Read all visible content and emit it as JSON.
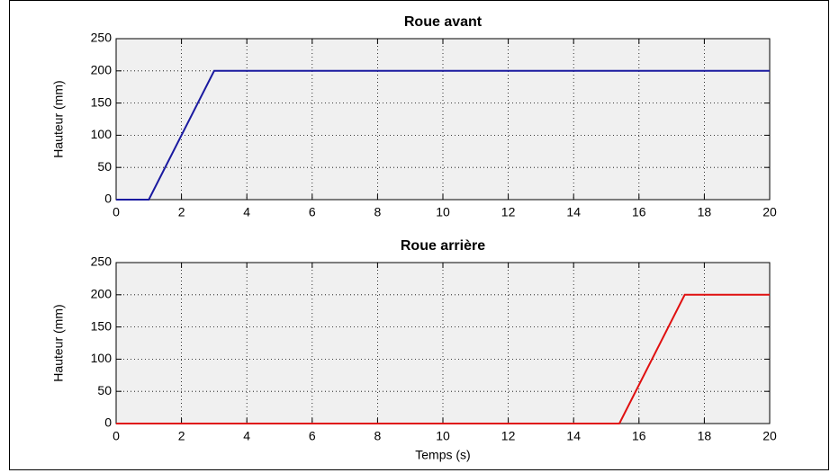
{
  "chart_data": [
    {
      "type": "line",
      "title": "Roue avant",
      "y_label": "Hauteur (mm)",
      "x": [
        0,
        1,
        3,
        20
      ],
      "values": [
        0,
        0,
        200,
        200
      ],
      "color": "#1a1aa0",
      "xlim": [
        0,
        20
      ],
      "xticks": [
        0,
        2,
        4,
        6,
        8,
        10,
        12,
        14,
        16,
        18,
        20
      ],
      "ylim": [
        0,
        250
      ],
      "yticks": [
        0,
        50,
        100,
        150,
        200,
        250
      ],
      "grid": true
    },
    {
      "type": "line",
      "title": "Roue arrière",
      "y_label": "Hauteur (mm)",
      "x_label": "Temps (s)",
      "x": [
        0,
        15.4,
        17.4,
        20
      ],
      "values": [
        0,
        0,
        200,
        200
      ],
      "color": "#e01010",
      "xlim": [
        0,
        20
      ],
      "xticks": [
        0,
        2,
        4,
        6,
        8,
        10,
        12,
        14,
        16,
        18,
        20
      ],
      "ylim": [
        0,
        250
      ],
      "yticks": [
        0,
        50,
        100,
        150,
        200,
        250
      ],
      "grid": true
    }
  ]
}
